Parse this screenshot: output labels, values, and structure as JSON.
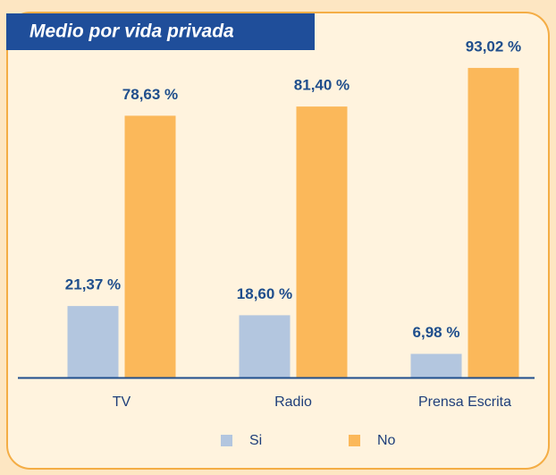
{
  "chart_data": {
    "type": "bar",
    "title": "Medio por vida privada",
    "categories": [
      "TV",
      "Radio",
      "Prensa Escrita"
    ],
    "series": [
      {
        "name": "Si",
        "color": "#b3c6df",
        "values": [
          21.37,
          18.6,
          6.98
        ],
        "value_labels": [
          "21,37 %",
          "18,60 %",
          "6,98 %"
        ]
      },
      {
        "name": "No",
        "color": "#fbb85a",
        "values": [
          78.63,
          81.4,
          93.02
        ],
        "value_labels": [
          "78,63 %",
          "81,40 %",
          "93,02 %"
        ]
      }
    ],
    "ylim": [
      0,
      100
    ]
  }
}
